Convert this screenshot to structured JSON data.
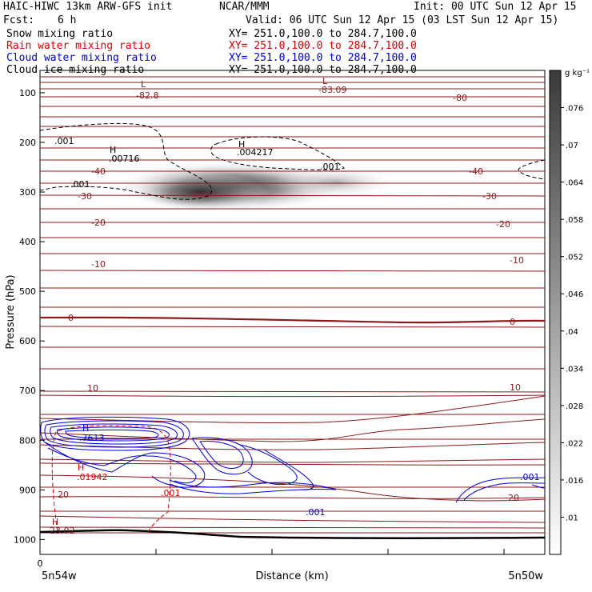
{
  "header": {
    "title": "HAIC-HIWC 13km ARW-GFS init",
    "org": "NCAR/MMM",
    "init": "Init: 00 UTC Sun 12 Apr 15",
    "fcst_label": "Fcst:",
    "fcst_value": "6 h",
    "valid": "Valid: 06 UTC Sun 12 Apr 15 (03 LST Sun 12 Apr 15)"
  },
  "fields": [
    {
      "name": "Snow mixing ratio",
      "xy": "XY= 251.0,100.0 to 284.7,100.0",
      "color": "#000000"
    },
    {
      "name": "Rain water mixing ratio",
      "xy": "XY= 251.0,100.0 to 284.7,100.0",
      "color": "#e00000"
    },
    {
      "name": "Cloud water mixing ratio",
      "xy": "XY= 251.0,100.0 to 284.7,100.0",
      "color": "#0000e0"
    },
    {
      "name": "Cloud ice mixing ratio",
      "xy": "XY= 251.0,100.0 to 284.7,100.0",
      "color": "#000000"
    }
  ],
  "chart_data": {
    "type": "contour",
    "ylabel": "Pressure (hPa)",
    "xlabel": "Distance (km)",
    "yticks": [
      100,
      200,
      300,
      400,
      500,
      600,
      700,
      800,
      900,
      1000
    ],
    "ylim": [
      1030,
      55
    ],
    "x_left_tick": "0",
    "x_left_label": "5n54w",
    "x_right_label": "5n50w",
    "colorbar": {
      "unit": "g kg⁻¹",
      "ticks": [
        ".01",
        ".016",
        ".022",
        ".028",
        ".034",
        ".04",
        ".046",
        ".052",
        ".058",
        ".064",
        ".07",
        ".076"
      ]
    },
    "temperature_labels": [
      {
        "text": "-82.8",
        "color": "#8b1a1a"
      },
      {
        "text": "-83.09",
        "color": "#8b1a1a"
      },
      {
        "text": "-80",
        "color": "#8b1a1a"
      },
      {
        "text": "-40",
        "color": "#8b1a1a"
      },
      {
        "text": "-40",
        "color": "#8b1a1a"
      },
      {
        "text": "-30",
        "color": "#8b1a1a"
      },
      {
        "text": "-30",
        "color": "#8b1a1a"
      },
      {
        "text": "-20",
        "color": "#8b1a1a"
      },
      {
        "text": "-20",
        "color": "#8b1a1a"
      },
      {
        "text": "-10",
        "color": "#8b1a1a"
      },
      {
        "text": "-10",
        "color": "#8b1a1a"
      },
      {
        "text": "0",
        "color": "#8b1a1a"
      },
      {
        "text": "0",
        "color": "#8b1a1a"
      },
      {
        "text": "10",
        "color": "#8b1a1a"
      },
      {
        "text": "10",
        "color": "#8b1a1a"
      },
      {
        "text": "20",
        "color": "#8b1a1a"
      },
      {
        "text": "20",
        "color": "#8b1a1a"
      }
    ],
    "extrema_markers": [
      {
        "letter": "L",
        "value": "-82.8",
        "color": "#8b1a1a"
      },
      {
        "letter": "L",
        "value": "-83.09",
        "color": "#8b1a1a"
      },
      {
        "letter": "H",
        "value": ".00716",
        "color": "#000000"
      },
      {
        "letter": "H",
        "value": ".004217",
        "color": "#000000"
      },
      {
        "letter": "H",
        "value": ".7613",
        "color": "#0000e0"
      },
      {
        "letter": "H",
        "value": ".01942",
        "color": "#e00000"
      },
      {
        "letter": "H",
        "value": "23.02",
        "color": "#8b1a1a"
      }
    ],
    "contour_labels": [
      {
        "text": ".001",
        "color": "#000000"
      },
      {
        "text": ".001",
        "color": "#000000"
      },
      {
        "text": ".001",
        "color": "#000000"
      },
      {
        "text": ".001",
        "color": "#e00000"
      },
      {
        "text": ".001",
        "color": "#0000e0"
      },
      {
        "text": ".001",
        "color": "#0000e0"
      }
    ]
  }
}
